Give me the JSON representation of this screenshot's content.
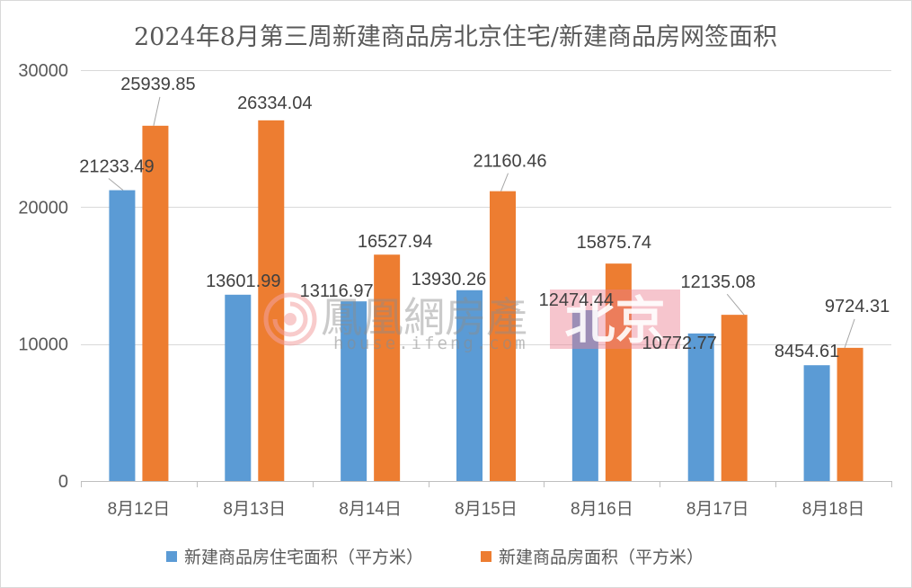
{
  "chart_data": {
    "type": "bar",
    "title": "2024年8月第三周新建商品房北京住宅/新建商品房网签面积",
    "categories": [
      "8月12日",
      "8月13日",
      "8月14日",
      "8月15日",
      "8月16日",
      "8月17日",
      "8月18日"
    ],
    "series": [
      {
        "name": "新建商品房住宅面积（平方米）",
        "color": "#5B9BD5",
        "values": [
          21233.49,
          13601.99,
          13116.97,
          13930.26,
          12474.44,
          10772.77,
          8454.61
        ]
      },
      {
        "name": "新建商品房面积（平方米）",
        "color": "#ED7D31",
        "values": [
          25939.85,
          26334.04,
          16527.94,
          21160.46,
          15875.74,
          12135.08,
          9724.31
        ]
      }
    ],
    "ylim": [
      0,
      30000
    ],
    "yticks": [
      0,
      10000,
      20000,
      30000
    ],
    "grid": true,
    "legend_position": "bottom"
  },
  "watermark": {
    "brand": "鳳凰網房產",
    "url": "house.ifeng.com",
    "city": "北京"
  }
}
